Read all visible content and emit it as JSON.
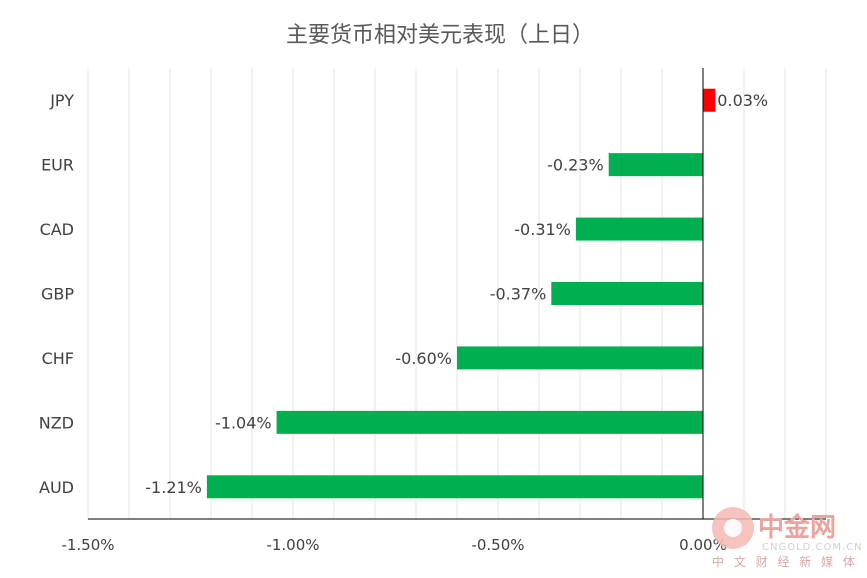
{
  "chart_data": {
    "type": "bar",
    "orientation": "horizontal",
    "title": "主要货币相对美元表现（上日）",
    "categories": [
      "JPY",
      "EUR",
      "CAD",
      "GBP",
      "CHF",
      "NZD",
      "AUD"
    ],
    "values": [
      0.03,
      -0.23,
      -0.31,
      -0.37,
      -0.6,
      -1.04,
      -1.21
    ],
    "data_labels": [
      "0.03%",
      "-0.23%",
      "-0.31%",
      "-0.37%",
      "-0.60%",
      "-1.04%",
      "-1.21%"
    ],
    "xlim": [
      -1.5,
      0.3
    ],
    "x_ticks": [
      -1.5,
      -1.0,
      -0.5,
      0.0
    ],
    "x_tick_labels": [
      "-1.50%",
      "-1.00%",
      "-0.50%",
      "0.00%"
    ],
    "grid": true,
    "legend": "none",
    "colors": {
      "positive": "#ff0000",
      "negative": "#00b050",
      "grid": "#e6e6e6",
      "axis": "#000000"
    }
  },
  "watermark": {
    "brand": "中金网",
    "domain": "CNGOLD.COM.CN",
    "tagline": "中 文 财 经 新 媒 体"
  }
}
